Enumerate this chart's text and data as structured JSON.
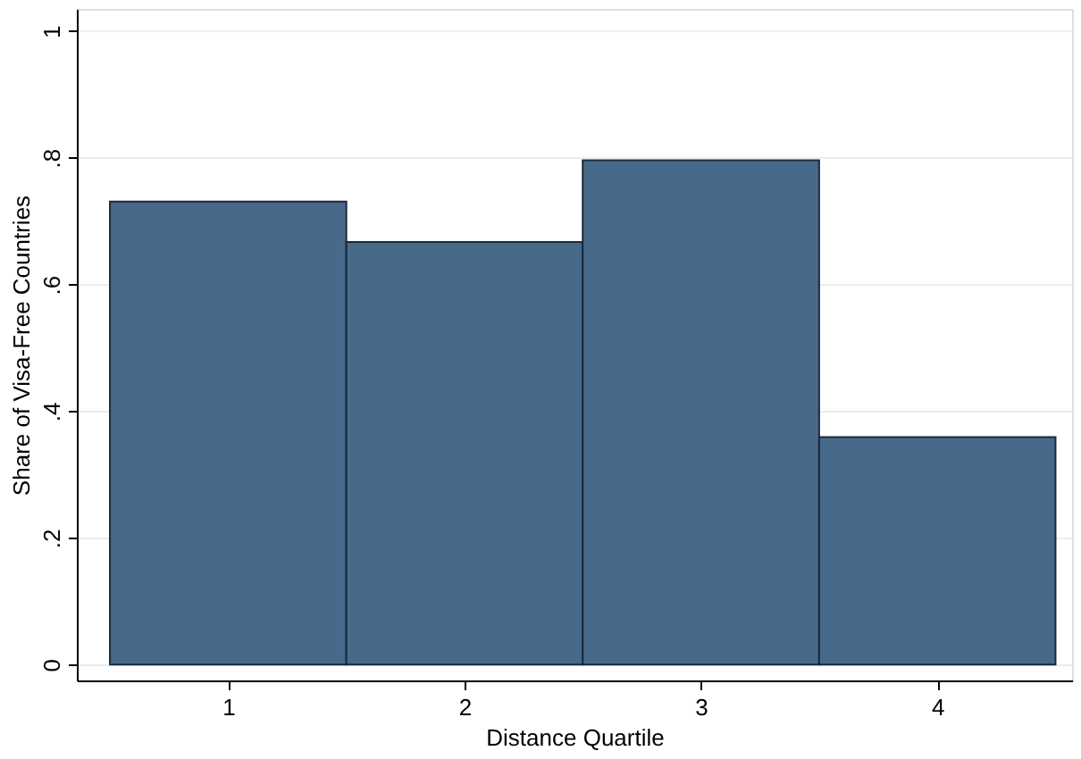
{
  "chart_data": {
    "type": "bar",
    "xlabel": "Distance Quartile",
    "ylabel": "Share of Visa-Free Countries",
    "x": [
      1,
      2,
      3,
      4
    ],
    "values": [
      0.731,
      0.667,
      0.796,
      0.359
    ],
    "color": "#476a8a",
    "xlim": [
      0.36,
      4.57
    ],
    "xticks": [
      1,
      2,
      3,
      4
    ],
    "ylim": [
      -0.025,
      1.035
    ],
    "yticks": [
      0,
      {
        "value": 0.2,
        "label": ".2"
      },
      {
        "value": 0.4,
        "label": ".4"
      },
      {
        "value": 0.6,
        "label": ".6"
      },
      {
        "value": 0.8,
        "label": ".8"
      },
      1
    ],
    "grid": "y"
  }
}
